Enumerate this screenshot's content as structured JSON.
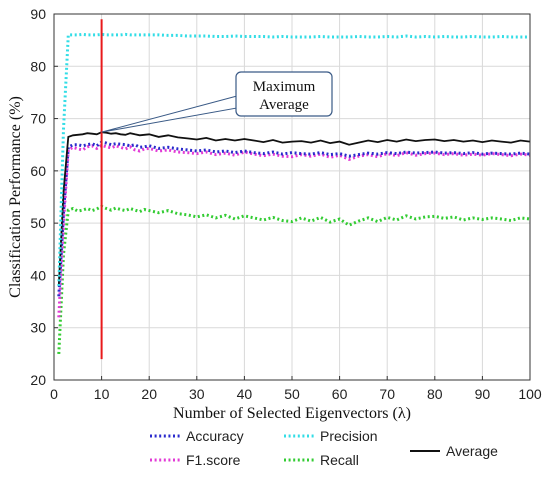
{
  "chart_data": {
    "type": "line",
    "title": "",
    "xlabel": "Number of Selected Eigenvectors (λ)",
    "ylabel": "Classification Performance (%)",
    "xlim": [
      0,
      100
    ],
    "ylim": [
      20,
      90
    ],
    "xticks": [
      0,
      10,
      20,
      30,
      40,
      50,
      60,
      70,
      80,
      90,
      100
    ],
    "yticks": [
      20,
      30,
      40,
      50,
      60,
      70,
      80,
      90
    ],
    "grid": true,
    "legend_position": "bottom",
    "x": [
      1,
      2,
      3,
      4,
      5,
      6,
      7,
      8,
      9,
      10,
      11,
      12,
      13,
      14,
      15,
      16,
      17,
      18,
      19,
      20,
      22,
      24,
      26,
      28,
      30,
      32,
      34,
      36,
      38,
      40,
      42,
      44,
      46,
      48,
      50,
      52,
      54,
      56,
      58,
      60,
      62,
      64,
      66,
      68,
      70,
      72,
      74,
      76,
      78,
      80,
      82,
      84,
      86,
      88,
      90,
      92,
      94,
      96,
      98,
      100
    ],
    "series": [
      {
        "name": "Accuracy",
        "color": "#2a2acc",
        "style": "dotted",
        "values": [
          36,
          52,
          64.5,
          65,
          65,
          64.8,
          65,
          65.2,
          64.8,
          65.5,
          65.3,
          65,
          65.2,
          65.1,
          65,
          64.8,
          65,
          64.5,
          64.6,
          64.8,
          64.3,
          64.5,
          64.2,
          64,
          63.8,
          64,
          63.6,
          63.8,
          63.5,
          63.8,
          63.5,
          63.3,
          63.6,
          63.2,
          63.5,
          63.3,
          63.2,
          63.5,
          63.1,
          63.3,
          62.8,
          63.1,
          63.4,
          63.2,
          63.5,
          63.3,
          63.6,
          63.4,
          63.5,
          63.6,
          63.4,
          63.5,
          63.3,
          63.5,
          63.2,
          63.4,
          63.3,
          63.2,
          63.4,
          63.2
        ]
      },
      {
        "name": "Precision",
        "color": "#33dde6",
        "style": "dotted",
        "values": [
          38,
          68,
          86,
          86,
          86,
          86.1,
          86,
          86,
          86,
          86.1,
          86,
          86,
          86,
          86,
          86.1,
          86,
          86,
          86,
          86,
          86,
          86,
          85.9,
          85.9,
          85.8,
          85.8,
          85.8,
          85.7,
          85.7,
          85.8,
          85.7,
          85.7,
          85.7,
          85.6,
          85.7,
          85.6,
          85.6,
          85.6,
          85.7,
          85.6,
          85.6,
          85.6,
          85.7,
          85.6,
          85.6,
          85.7,
          85.6,
          85.8,
          85.6,
          85.7,
          85.6,
          85.7,
          85.6,
          85.6,
          85.7,
          85.6,
          85.6,
          85.7,
          85.6,
          85.6,
          85.6
        ]
      },
      {
        "name": "F1.score",
        "color": "#e23ad6",
        "style": "dotted",
        "values": [
          32,
          50,
          64,
          64.5,
          64.2,
          64,
          64.6,
          64.8,
          64.3,
          64.9,
          64.6,
          64.4,
          64.8,
          64.5,
          64.2,
          64.6,
          64,
          63.8,
          64.2,
          64.3,
          63.8,
          64,
          63.6,
          63.5,
          63.3,
          63.6,
          63.1,
          63.4,
          63,
          63.6,
          63.2,
          62.9,
          63.2,
          62.8,
          62.7,
          63.1,
          62.8,
          63.2,
          62.6,
          63,
          62.2,
          62.8,
          63.1,
          62.7,
          63.3,
          62.9,
          63.5,
          63,
          63.3,
          63.4,
          63.1,
          63.3,
          63,
          63.2,
          63,
          63.3,
          63.1,
          62.9,
          63.2,
          63
        ]
      },
      {
        "name": "Recall",
        "color": "#33cc33",
        "style": "dotted",
        "values": [
          25,
          44,
          52.5,
          52.8,
          52.3,
          52.5,
          52.8,
          52.4,
          52.7,
          53.2,
          52.8,
          52.5,
          52.9,
          52.6,
          52.4,
          52.8,
          52.5,
          52.2,
          52.6,
          52.4,
          52,
          52.4,
          51.8,
          51.6,
          51.2,
          51.6,
          51,
          51.5,
          50.8,
          51.4,
          51,
          50.6,
          51.1,
          50.5,
          50.3,
          51,
          50.4,
          51.1,
          50.2,
          50.8,
          49.6,
          50.4,
          51,
          50.3,
          51.1,
          50.6,
          51.4,
          50.8,
          51.2,
          51.3,
          50.9,
          51.2,
          50.6,
          51,
          50.7,
          51,
          50.8,
          50.5,
          51,
          50.8
        ]
      },
      {
        "name": "Average",
        "color": "#111111",
        "style": "solid",
        "values": [
          38,
          56,
          66.5,
          66.8,
          66.9,
          67,
          67.2,
          67.1,
          67,
          67.4,
          67.3,
          67.1,
          67.2,
          67,
          66.9,
          67.2,
          67,
          66.8,
          66.9,
          67,
          66.5,
          66.8,
          66.4,
          66.2,
          66,
          66.3,
          65.8,
          66.1,
          65.8,
          66.1,
          65.8,
          65.5,
          65.9,
          65.4,
          65.6,
          65.7,
          65.4,
          65.8,
          65.3,
          65.6,
          65,
          65.4,
          65.8,
          65.5,
          65.9,
          65.6,
          66,
          65.7,
          65.9,
          66,
          65.7,
          65.9,
          65.6,
          65.8,
          65.5,
          65.8,
          65.6,
          65.4,
          65.8,
          65.6
        ]
      }
    ],
    "vertical_marker": {
      "x": 10,
      "y_from": 24,
      "y_to": 89,
      "color": "#e8191b"
    },
    "annotation": {
      "lines": [
        "Maximum",
        "Average"
      ],
      "arrow_x": 10,
      "arrow_y": 67.4
    }
  }
}
